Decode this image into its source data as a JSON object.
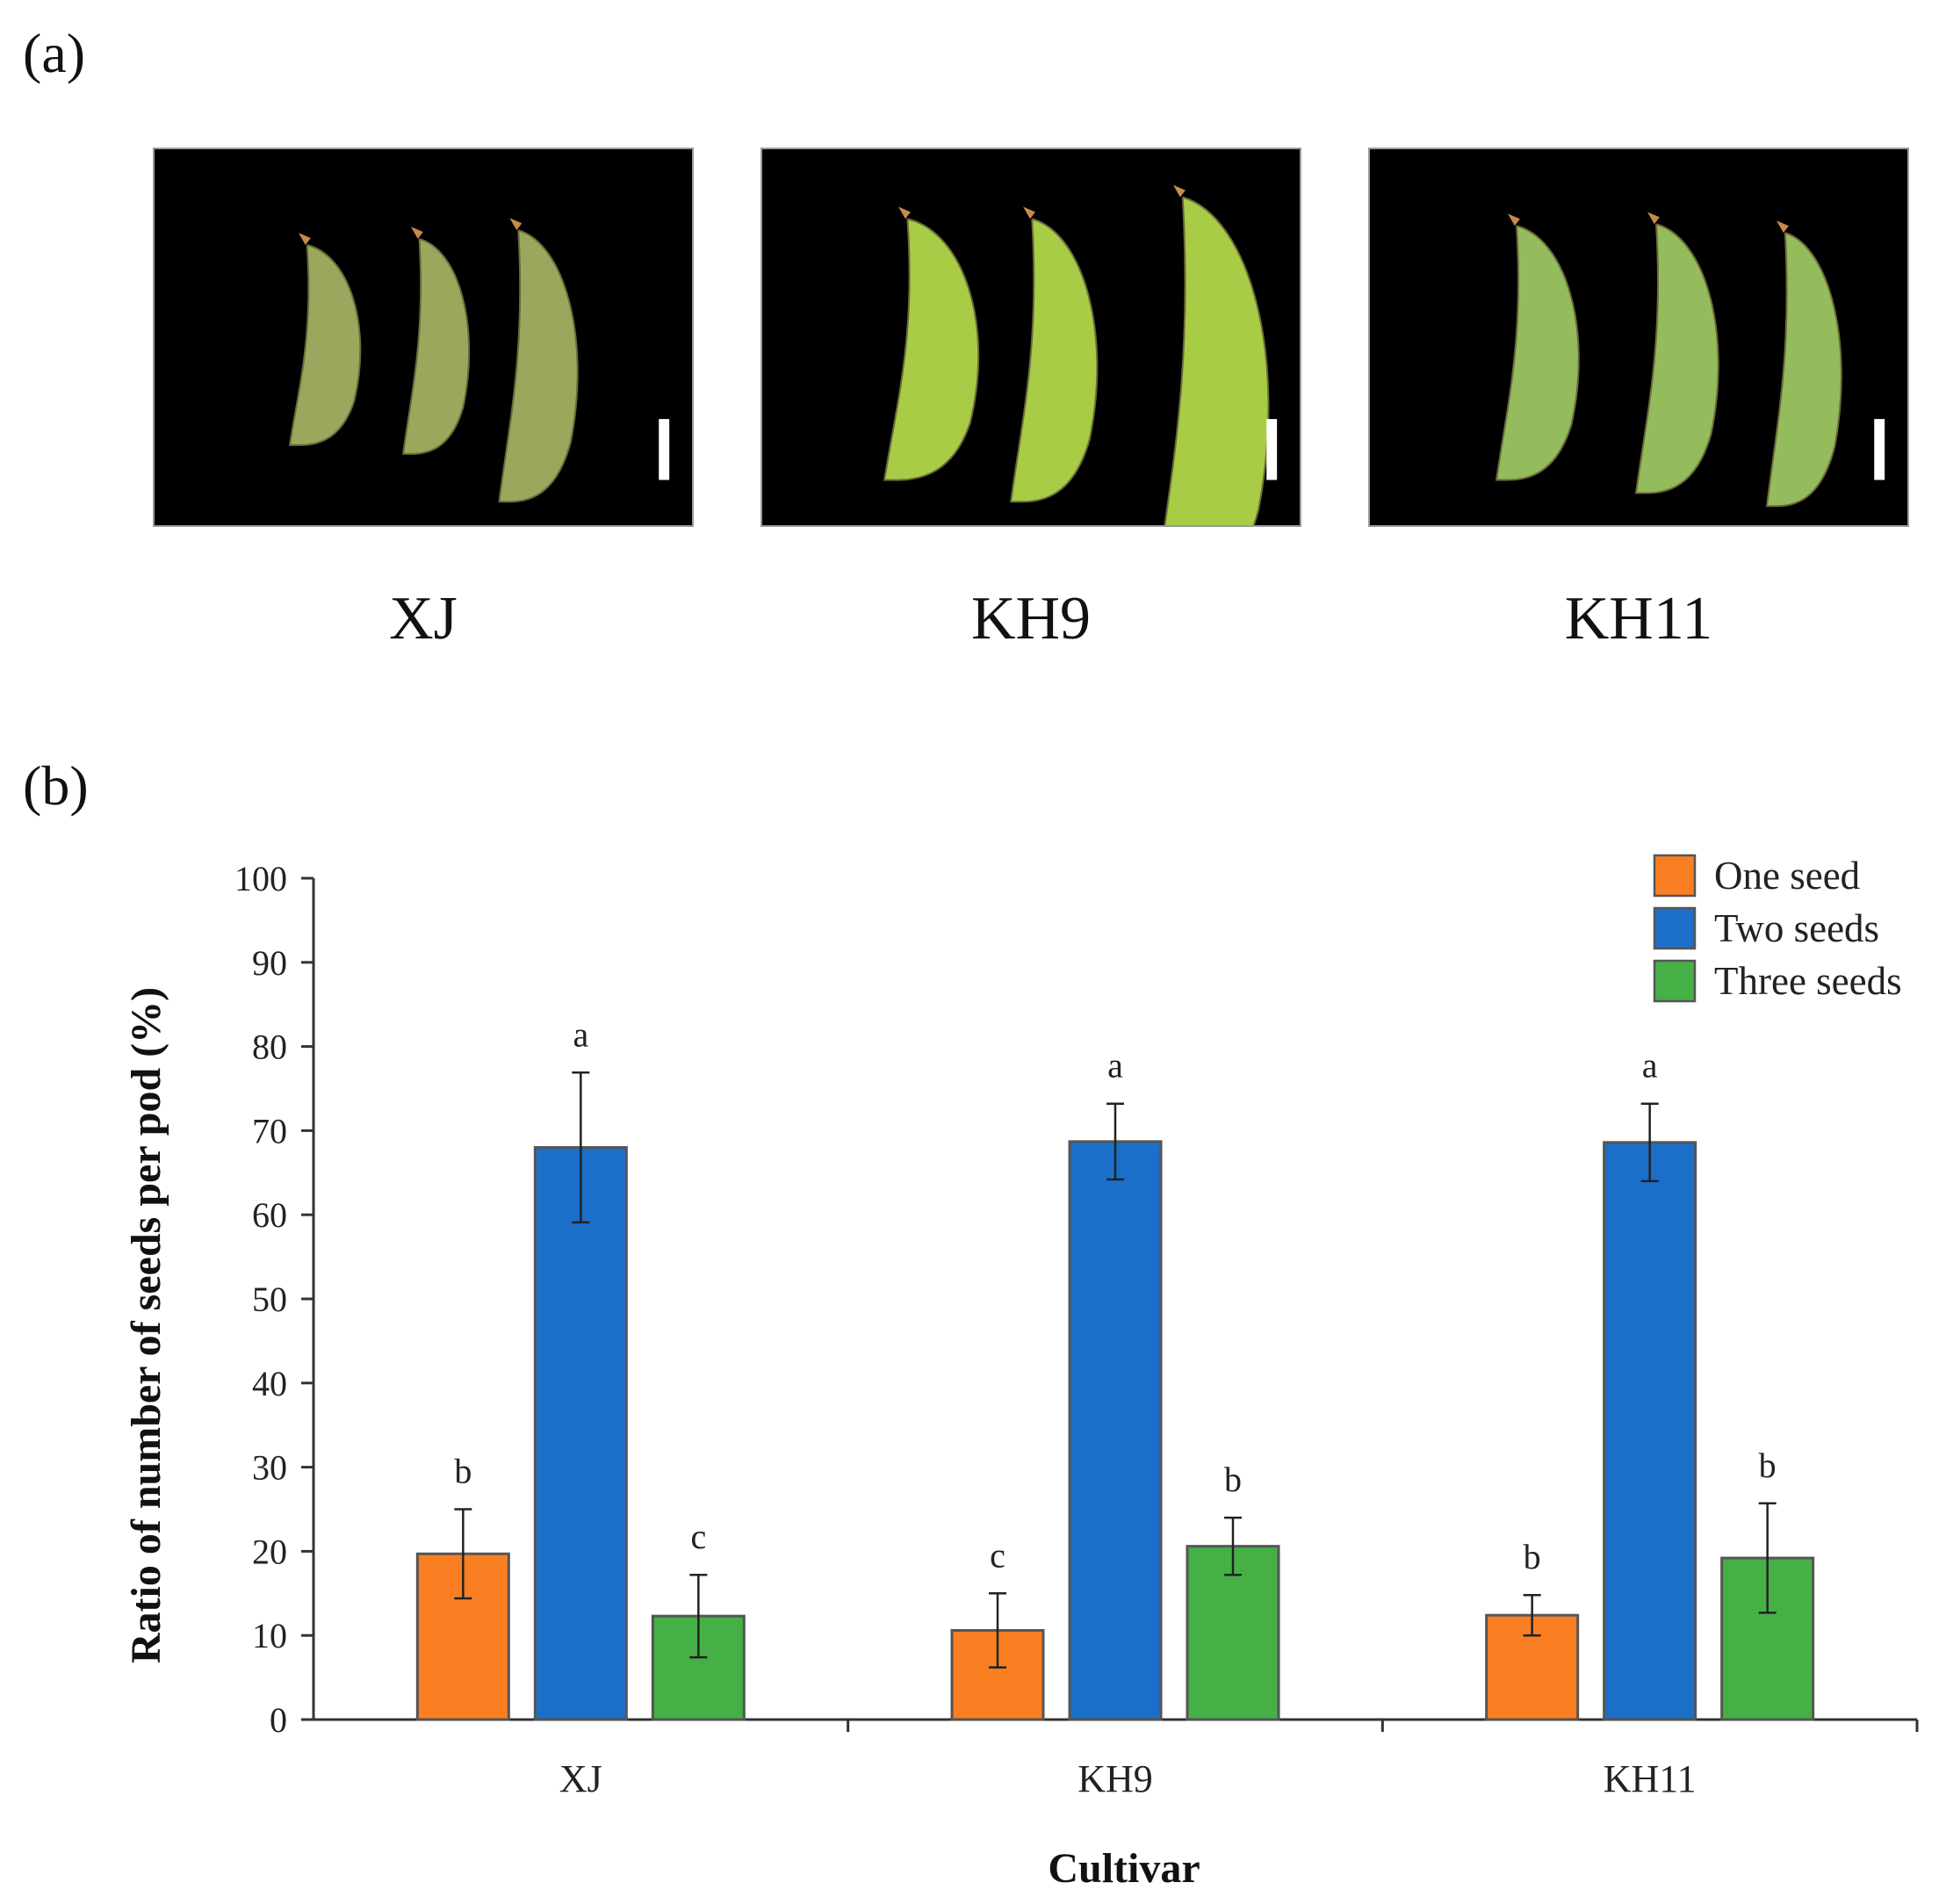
{
  "figure": {
    "panel_a_label": "(a)",
    "panel_b_label": "(b)"
  },
  "photos": [
    {
      "label": "XJ",
      "pods": 3
    },
    {
      "label": "KH9",
      "pods": 3
    },
    {
      "label": "KH11",
      "pods": 3
    }
  ],
  "colors": {
    "one_seed": "#f97f22",
    "two_seeds": "#1b6fc9",
    "three_seeds": "#45b045",
    "axis": "#333333",
    "pod_xj": "#9aa85e",
    "pod_kh9": "#a8cc45",
    "pod_kh11": "#94bb5c"
  },
  "chart_data": {
    "type": "bar",
    "title": "",
    "xlabel": "Cultivar",
    "ylabel": "Ratio of number of seeds per pod (%)",
    "ylim": [
      0,
      100
    ],
    "yticks": [
      "0",
      "10",
      "20",
      "30",
      "40",
      "50",
      "60",
      "70",
      "80",
      "90",
      "100"
    ],
    "categories": [
      "XJ",
      "KH9",
      "KH11"
    ],
    "legend_position": "top-right",
    "series": [
      {
        "name": "One seed",
        "color_key": "one_seed",
        "values": [
          19.7,
          10.6,
          12.4
        ],
        "errors": [
          5.3,
          4.4,
          2.4
        ],
        "letters": [
          "b",
          "c",
          "b"
        ]
      },
      {
        "name": "Two seeds",
        "color_key": "two_seeds",
        "values": [
          68.0,
          68.7,
          68.6
        ],
        "errors": [
          8.9,
          4.5,
          4.6
        ],
        "letters": [
          "a",
          "a",
          "a"
        ]
      },
      {
        "name": "Three seeds",
        "color_key": "three_seeds",
        "values": [
          12.3,
          20.6,
          19.2
        ],
        "errors": [
          4.9,
          3.4,
          6.5
        ],
        "letters": [
          "c",
          "b",
          "b"
        ]
      }
    ]
  }
}
